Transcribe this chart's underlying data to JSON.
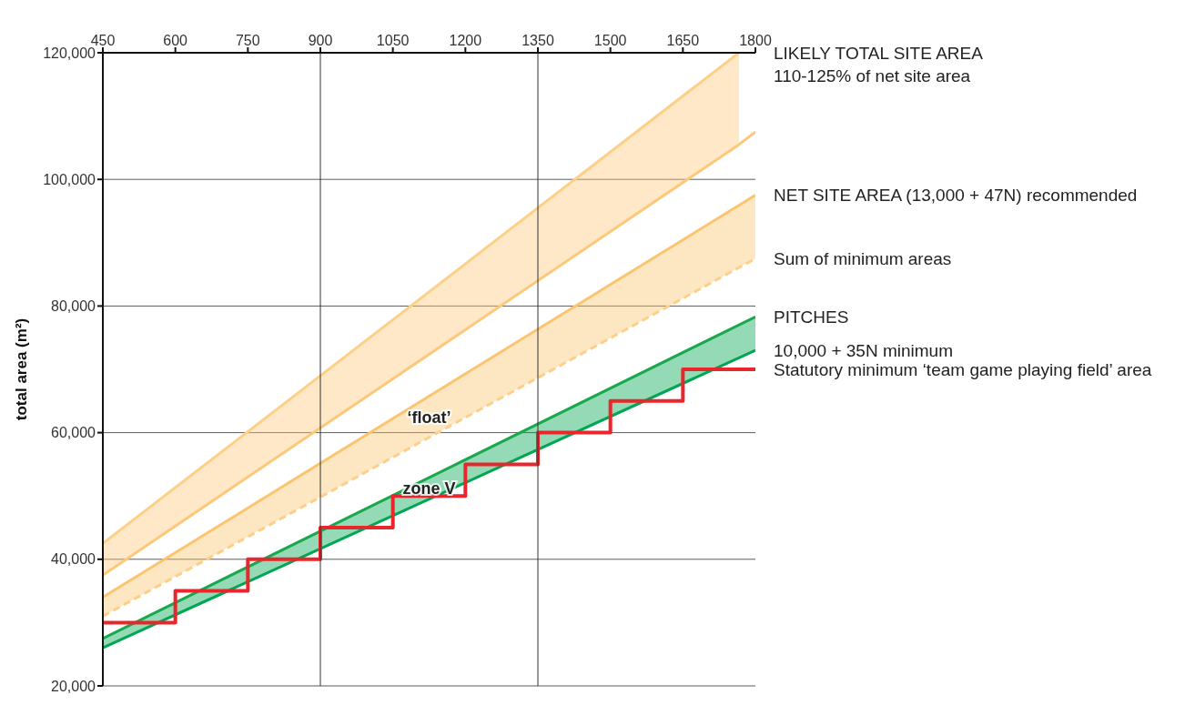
{
  "chart_data": {
    "type": "line",
    "ylabel": "total area (m²)",
    "xlim": [
      450,
      1800
    ],
    "xticks": [
      450,
      600,
      750,
      900,
      1050,
      1200,
      1350,
      1500,
      1650,
      1800
    ],
    "ylim": [
      20000,
      120000
    ],
    "yticks": [
      {
        "value": 20000,
        "label": "20,000"
      },
      {
        "value": 40000,
        "label": "40,000"
      },
      {
        "value": 60000,
        "label": "60,000"
      },
      {
        "value": 80000,
        "label": "80,000"
      },
      {
        "value": 100000,
        "label": "100,000"
      },
      {
        "value": 120000,
        "label": "120,000"
      }
    ],
    "grid": "y",
    "legend": false,
    "marker": "none",
    "series": [
      {
        "color": "#fcc97a",
        "x": [
          450,
          1766,
          1800
        ],
        "values": [
          37500,
          105500,
          107500
        ],
        "lower": [
          37500,
          105500,
          null
        ],
        "upper": [
          42500,
          120000,
          null
        ]
      },
      {
        "color": "#fdd088",
        "x": [
          450,
          1766
        ],
        "values": [
          42500,
          120000
        ]
      },
      {
        "name": "NET SITE AREA (13,000 + 47N) recommended",
        "color": "#fbc56f",
        "x": [
          450,
          1800
        ],
        "values": [
          34000,
          97500
        ],
        "lower": [
          31000,
          87500
        ],
        "upper": [
          34000,
          97500
        ]
      },
      {
        "name": "Sum of minimum areas",
        "color": "#fdd08a",
        "line_style": "dashed",
        "x": [
          450,
          1800
        ],
        "values": [
          31000,
          87500
        ]
      },
      {
        "name": "10,000 + 35N  minimum",
        "color": "#00a651",
        "x": [
          450,
          1800
        ],
        "values": [
          26000,
          73000
        ],
        "lower": [
          26000,
          73000
        ],
        "upper": [
          27500,
          78300
        ]
      },
      {
        "name": "PITCHES",
        "color": "#1aa84c",
        "x": [
          450,
          1800
        ],
        "values": [
          27500,
          78300
        ]
      },
      {
        "name": "Statutory minimum ‘team game playing field’ area",
        "type": "step",
        "color": "#e8262c",
        "x": [
          450,
          600,
          750,
          900,
          1050,
          1200,
          1350,
          1500,
          1650,
          1800
        ],
        "values": [
          30000,
          35000,
          40000,
          45000,
          50000,
          55000,
          60000,
          65000,
          70000,
          70000
        ]
      }
    ],
    "ref_lines": [
      {
        "axis": "x",
        "value": 900,
        "color": "#333333"
      },
      {
        "axis": "x",
        "value": 1350,
        "color": "#333333"
      }
    ],
    "annotations": [
      "LIKELY TOTAL SITE AREA",
      "110-125% of net site area",
      "‘float’",
      "zone V"
    ]
  }
}
